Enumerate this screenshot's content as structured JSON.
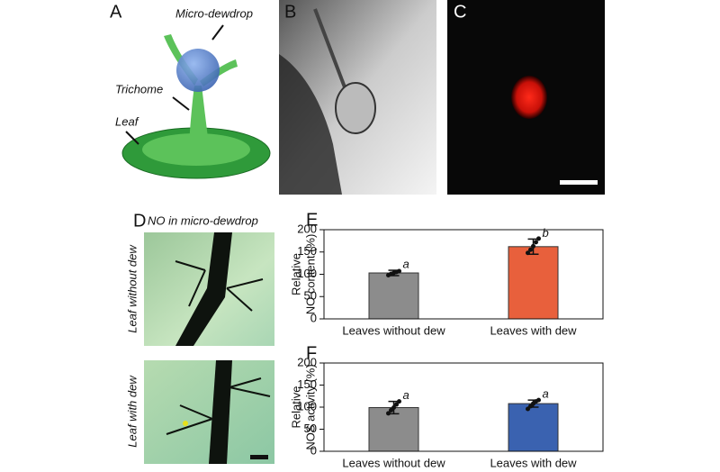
{
  "panels": {
    "a": {
      "label": "A",
      "dewdrop": "Micro-dewdrop",
      "trichome": "Trichome",
      "leaf": "Leaf"
    },
    "b": {
      "label": "B"
    },
    "c": {
      "label": "C"
    },
    "d": {
      "label": "D",
      "title": "NO in micro-dewdrop",
      "top": "Leaf without dew",
      "bottom": "Leaf with dew"
    }
  },
  "chart_data": [
    {
      "type": "bar",
      "label": "E",
      "ylabel": [
        "Relative",
        "NO content (%)"
      ],
      "categories": [
        "Leaves without dew",
        "Leaves with dew"
      ],
      "values": [
        103,
        162
      ],
      "errors": [
        6,
        17
      ],
      "points": [
        [
          98,
          101,
          103,
          105,
          107
        ],
        [
          148,
          155,
          163,
          172,
          180
        ]
      ],
      "annotations": [
        "a",
        "b"
      ],
      "colors": [
        "#8c8c8c",
        "#e8603c"
      ],
      "ylim": [
        0,
        200
      ],
      "yticks": [
        0,
        50,
        100,
        150,
        200
      ]
    },
    {
      "type": "bar",
      "label": "F",
      "ylabel": [
        "Relative",
        "NOS activity (%)"
      ],
      "categories": [
        "Leaves without dew",
        "Leaves with dew"
      ],
      "values": [
        99,
        108
      ],
      "errors": [
        14,
        8
      ],
      "points": [
        [
          86,
          93,
          99,
          106,
          113
        ],
        [
          96,
          102,
          108,
          113,
          116
        ]
      ],
      "annotations": [
        "a",
        "a"
      ],
      "colors": [
        "#8c8c8c",
        "#3a62b0"
      ],
      "ylim": [
        0,
        200
      ],
      "yticks": [
        0,
        50,
        100,
        150,
        200
      ]
    }
  ]
}
